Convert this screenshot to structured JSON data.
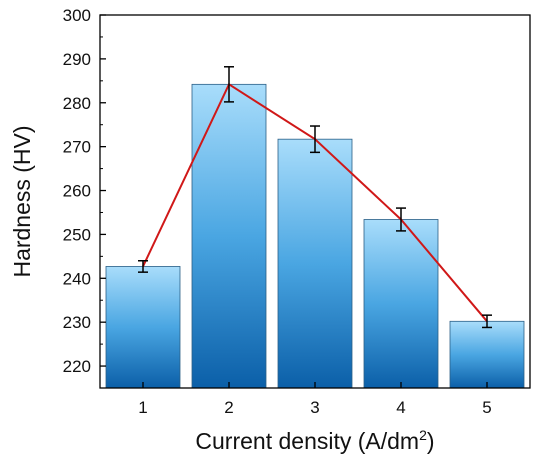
{
  "chart_data": {
    "type": "bar",
    "categories": [
      "1",
      "2",
      "3",
      "4",
      "5"
    ],
    "values": [
      242.7,
      284.2,
      271.7,
      253.4,
      230.2
    ],
    "errors": [
      1.3,
      4.0,
      3.0,
      2.6,
      1.4
    ],
    "overlay_line": true,
    "title": "",
    "xlabel": "Current density (A/dm",
    "xlabel_superscript": "2",
    "xlabel_suffix": ")",
    "ylabel": "Hardness (HV)",
    "ylim": [
      215,
      300
    ],
    "yticks": [
      220,
      230,
      240,
      250,
      260,
      270,
      280,
      290,
      300
    ],
    "grid": false,
    "legend": "none",
    "colors": {
      "bar_top": "#a9ddfb",
      "bar_mid": "#4aa6e2",
      "bar_bottom": "#0b5fa8",
      "bar_edge": "#2b5f86",
      "line": "#d01818",
      "error_bar": "#000000",
      "axis": "#000000"
    }
  }
}
